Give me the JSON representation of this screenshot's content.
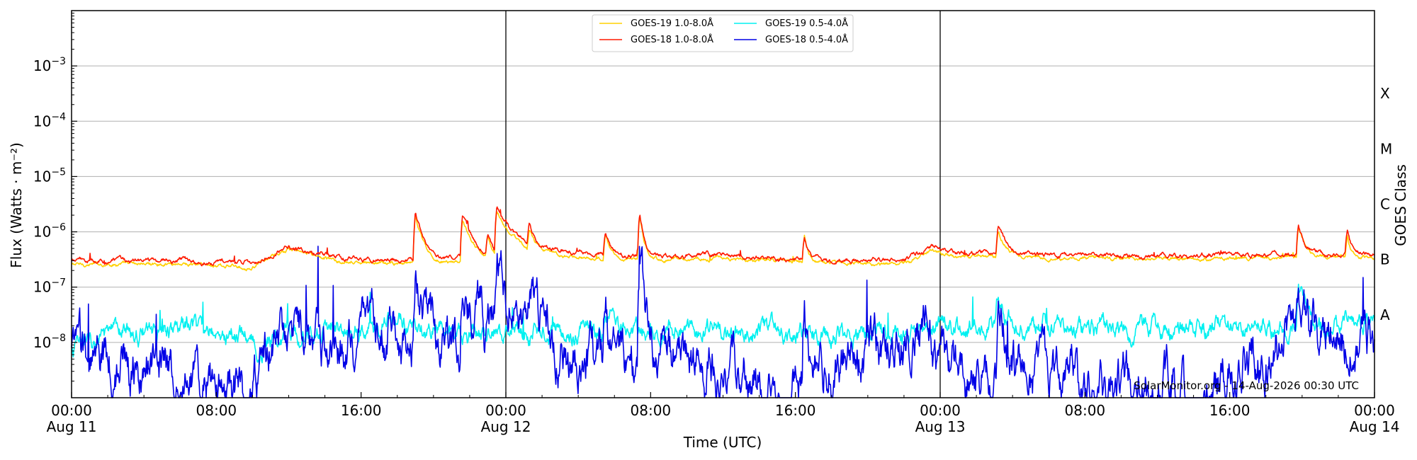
{
  "chart_data": {
    "type": "line",
    "xlabel": "Time (UTC)",
    "ylabel": "Flux (Watts · m⁻²)",
    "y2label": "GOES Class",
    "yscale": "log",
    "xlim": [
      "Aug 11 00:00",
      "Aug 14 00:00"
    ],
    "ylim": [
      1e-09,
      0.01
    ],
    "x_tick_labels": [
      {
        "time": "00:00",
        "date": "Aug 11"
      },
      {
        "time": "08:00",
        "date": ""
      },
      {
        "time": "16:00",
        "date": ""
      },
      {
        "time": "00:00",
        "date": "Aug 12"
      },
      {
        "time": "08:00",
        "date": ""
      },
      {
        "time": "16:00",
        "date": ""
      },
      {
        "time": "00:00",
        "date": "Aug 13"
      },
      {
        "time": "08:00",
        "date": ""
      },
      {
        "time": "16:00",
        "date": ""
      },
      {
        "time": "00:00",
        "date": "Aug 14"
      }
    ],
    "y_tick_labels": [
      {
        "base": "10",
        "exp": "−8",
        "value": 1e-08
      },
      {
        "base": "10",
        "exp": "−7",
        "value": 1e-07
      },
      {
        "base": "10",
        "exp": "−6",
        "value": 1e-06
      },
      {
        "base": "10",
        "exp": "−5",
        "value": 1e-05
      },
      {
        "base": "10",
        "exp": "−4",
        "value": 0.0001
      },
      {
        "base": "10",
        "exp": "−3",
        "value": 0.001
      }
    ],
    "goes_classes": [
      {
        "label": "A",
        "value": 3.16e-08
      },
      {
        "label": "B",
        "value": 3.16e-07
      },
      {
        "label": "C",
        "value": 3.16e-06
      },
      {
        "label": "M",
        "value": 3.16e-05
      },
      {
        "label": "X",
        "value": 0.000316
      }
    ],
    "grid": "horizontal",
    "day_boundaries": [
      "Aug 12 00:00",
      "Aug 13 00:00"
    ],
    "legend_position": "top-center",
    "series": [
      {
        "name": "GOES-19 1.0-8.0Å",
        "color": "#ffd000",
        "baseline": [
          [
            0,
            2.8e-07
          ],
          [
            6,
            2.9e-07
          ],
          [
            10,
            2.5e-07
          ],
          [
            12,
            5.2e-07
          ],
          [
            15,
            3e-07
          ],
          [
            19,
            2.9e-07
          ],
          [
            21,
            3.1e-07
          ],
          [
            23.9,
            3e-07
          ],
          [
            24,
            4.5e-07
          ],
          [
            27,
            4.2e-07
          ],
          [
            30,
            3.4e-07
          ],
          [
            36,
            3.6e-07
          ],
          [
            42,
            2.9e-07
          ],
          [
            46,
            2.8e-07
          ],
          [
            47.5,
            5e-07
          ],
          [
            49,
            4e-07
          ],
          [
            52,
            3.8e-07
          ],
          [
            56,
            3.5e-07
          ],
          [
            62,
            3.5e-07
          ],
          [
            66,
            3.6e-07
          ],
          [
            70,
            3.9e-07
          ],
          [
            72,
            3.8e-07
          ]
        ],
        "flares": [
          [
            19.0,
            1.7e-06,
            0.6
          ],
          [
            21.6,
            1.35e-06,
            0.9
          ],
          [
            23.0,
            5.5e-07,
            0.4
          ],
          [
            23.5,
            2.4e-06,
            1.0
          ],
          [
            25.3,
            7.5e-07,
            0.5
          ],
          [
            29.5,
            6e-07,
            0.4
          ],
          [
            31.4,
            1.7e-06,
            0.3
          ],
          [
            40.5,
            5.5e-07,
            0.3
          ],
          [
            51.2,
            7.5e-07,
            0.6
          ],
          [
            67.8,
            8.8e-07,
            0.5
          ],
          [
            70.5,
            5.5e-07,
            0.3
          ]
        ],
        "noise": 0.04,
        "offset": 0.92
      },
      {
        "name": "GOES-18 1.0-8.0Å",
        "color": "#ff1a00",
        "baseline": [
          [
            0,
            3e-07
          ],
          [
            6,
            3.1e-07
          ],
          [
            10,
            2.7e-07
          ],
          [
            12,
            5.5e-07
          ],
          [
            15,
            3.2e-07
          ],
          [
            19,
            3.1e-07
          ],
          [
            21,
            3.3e-07
          ],
          [
            23.9,
            3.2e-07
          ],
          [
            24,
            4.8e-07
          ],
          [
            27,
            4.5e-07
          ],
          [
            30,
            3.6e-07
          ],
          [
            36,
            3.8e-07
          ],
          [
            42,
            3.1e-07
          ],
          [
            46,
            3e-07
          ],
          [
            47.5,
            5.3e-07
          ],
          [
            49,
            4.2e-07
          ],
          [
            52,
            4e-07
          ],
          [
            56,
            3.7e-07
          ],
          [
            62,
            3.7e-07
          ],
          [
            66,
            3.8e-07
          ],
          [
            70,
            4.1e-07
          ],
          [
            72,
            4e-07
          ]
        ],
        "flares": [
          [
            19.0,
            1.8e-06,
            0.6
          ],
          [
            21.6,
            1.4e-06,
            0.9
          ],
          [
            23.0,
            5.8e-07,
            0.4
          ],
          [
            23.5,
            2.5e-06,
            1.0
          ],
          [
            25.3,
            7.8e-07,
            0.5
          ],
          [
            29.5,
            6.2e-07,
            0.4
          ],
          [
            31.4,
            1.75e-06,
            0.3
          ],
          [
            40.5,
            5.6e-07,
            0.3
          ],
          [
            51.2,
            7.8e-07,
            0.6
          ],
          [
            67.8,
            9e-07,
            0.5
          ],
          [
            70.5,
            5.7e-07,
            0.3
          ]
        ],
        "noise": 0.05,
        "offset": 1.0
      },
      {
        "name": "GOES-19 0.5-4.0Å",
        "color": "#00f0f0",
        "baseline": [
          [
            0,
            8e-09
          ],
          [
            3,
            1.5e-08
          ],
          [
            6,
            1.8e-08
          ],
          [
            9,
            1.3e-08
          ],
          [
            10.5,
            8e-09
          ],
          [
            12,
            1.4e-08
          ],
          [
            18,
            2.2e-08
          ],
          [
            21,
            1.6e-08
          ],
          [
            24,
            1.5e-08
          ],
          [
            27,
            1.5e-08
          ],
          [
            30,
            1.6e-08
          ],
          [
            36,
            1.6e-08
          ],
          [
            42,
            1.5e-08
          ],
          [
            46,
            1.4e-08
          ],
          [
            48,
            1.9e-08
          ],
          [
            54,
            2e-08
          ],
          [
            60,
            1.6e-08
          ],
          [
            66,
            2e-08
          ],
          [
            70,
            2.2e-08
          ],
          [
            72,
            2.3e-08
          ]
        ],
        "flares": [
          [
            29.5,
            3e-08,
            0.4
          ],
          [
            51.2,
            4.5e-08,
            0.5
          ],
          [
            67.8,
            5.5e-08,
            0.6
          ],
          [
            70.3,
            2.8e-08,
            0.3
          ]
        ],
        "noise": 0.22,
        "offset": 1.0
      },
      {
        "name": "GOES-18 0.5-4.0Å",
        "color": "#0000e6",
        "baseline": [
          [
            0,
            6e-09
          ],
          [
            4,
            4e-09
          ],
          [
            7,
            2e-09
          ],
          [
            10,
            1.2e-09
          ],
          [
            11,
            8e-09
          ],
          [
            12,
            1.2e-08
          ],
          [
            15,
            6e-09
          ],
          [
            18,
            1.5e-08
          ],
          [
            20,
            6e-09
          ],
          [
            22,
            1e-08
          ],
          [
            24,
            1.2e-08
          ],
          [
            26,
            1.5e-08
          ],
          [
            28,
            4e-09
          ],
          [
            31,
            5e-09
          ],
          [
            33,
            8e-09
          ],
          [
            36,
            4e-09
          ],
          [
            39,
            1e-09
          ],
          [
            41,
            3e-09
          ],
          [
            44,
            6e-09
          ],
          [
            46,
            1e-08
          ],
          [
            47.5,
            1.3e-08
          ],
          [
            48,
            4e-09
          ],
          [
            52,
            2e-09
          ],
          [
            58,
            2e-09
          ],
          [
            63,
            1.2e-09
          ],
          [
            66,
            1e-08
          ],
          [
            68,
            1.6e-08
          ],
          [
            72,
            1e-08
          ]
        ],
        "flares": [
          [
            19.0,
            1.9e-07,
            0.6
          ],
          [
            21.6,
            1.15e-07,
            0.9
          ],
          [
            23.0,
            2.5e-08,
            0.4
          ],
          [
            23.5,
            2.7e-07,
            1.0
          ],
          [
            25.3,
            5.5e-08,
            0.5
          ],
          [
            29.5,
            3.5e-08,
            0.4
          ],
          [
            31.4,
            2.1e-07,
            0.3
          ],
          [
            40.5,
            2.5e-08,
            0.3
          ],
          [
            51.2,
            2.2e-08,
            0.6
          ],
          [
            67.8,
            5e-08,
            0.5
          ]
        ],
        "noise": 0.55,
        "offset": 1.0
      }
    ]
  },
  "credit": "SolarMonitor.org - 14-Aug-2026 00:30 UTC"
}
